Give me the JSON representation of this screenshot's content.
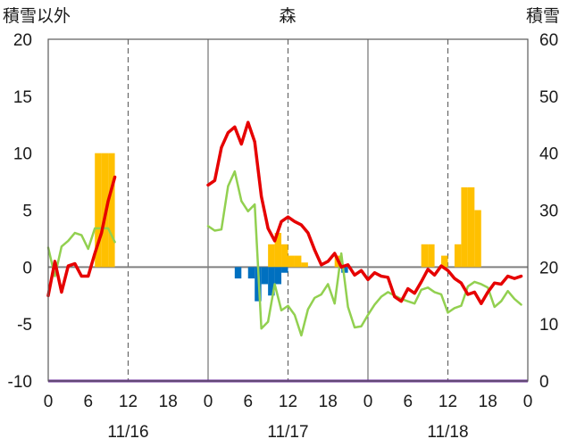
{
  "chart_data": {
    "type": "line",
    "title": "森",
    "left_axis_label": "積雪以外",
    "right_axis_label": "積雪",
    "left_ylim": [
      -10,
      20
    ],
    "left_yticks": [
      "20",
      "15",
      "10",
      "5",
      "0",
      "-5",
      "-10"
    ],
    "right_ylim": [
      0,
      60
    ],
    "right_yticks": [
      "60",
      "50",
      "40",
      "30",
      "20",
      "10",
      "0"
    ],
    "x_hour_ticks": [
      "0",
      "6",
      "12",
      "18",
      "0",
      "6",
      "12",
      "18",
      "0",
      "6",
      "12",
      "18",
      "0"
    ],
    "date_labels": [
      "11/16",
      "11/17",
      "11/18"
    ],
    "x_range_hours": [
      0,
      72
    ],
    "grid": "dashed vertical lines every 12 hours, solid at day boundaries",
    "colors": {
      "temperature": "#e60000",
      "wind": "#92d050",
      "precip_bar": "#ffc000",
      "negative_bar": "#0070c0",
      "snow_depth": "#7030a0",
      "zero_line": "#808080"
    },
    "series": [
      {
        "x": [
          0,
          1,
          2,
          3,
          4,
          5,
          6,
          7,
          8,
          9,
          10,
          24,
          25,
          26,
          27,
          28,
          29,
          30,
          31,
          32,
          33,
          34,
          35,
          36,
          37,
          38,
          39,
          40,
          41,
          42,
          43,
          44,
          45,
          46,
          47,
          48,
          49,
          50,
          51,
          52,
          53,
          54,
          55,
          56,
          57,
          58,
          59,
          60,
          61,
          62,
          63,
          64,
          65,
          66,
          67,
          68,
          69,
          70,
          71
        ],
        "values": [
          -2.5,
          0.5,
          -2.2,
          0.1,
          0.3,
          -0.8,
          -0.8,
          1.2,
          3.0,
          5.8,
          7.9,
          7.2,
          7.6,
          10.5,
          11.8,
          12.3,
          10.8,
          12.7,
          11.0,
          6.2,
          3.4,
          2.3,
          4.0,
          4.4,
          4.0,
          3.7,
          3.0,
          1.5,
          0.2,
          0.5,
          1.2,
          0.0,
          0.2,
          -0.7,
          -0.3,
          -1.1,
          -0.5,
          -0.8,
          -0.9,
          -2.6,
          -3.0,
          -1.9,
          -2.3,
          -1.3,
          -0.2,
          -0.7,
          0.1,
          -0.3,
          -1.0,
          -1.4,
          -2.4,
          -2.2,
          -3.2,
          -2.2,
          -1.4,
          -1.5,
          -0.8,
          -1.0,
          -0.8
        ]
      },
      {
        "x": [
          0,
          1,
          2,
          3,
          4,
          5,
          6,
          7,
          8,
          9,
          10,
          24,
          25,
          26,
          27,
          28,
          29,
          30,
          31,
          32,
          33,
          34,
          35,
          36,
          37,
          38,
          39,
          40,
          41,
          42,
          43,
          44,
          45,
          46,
          47,
          48,
          49,
          50,
          51,
          52,
          53,
          54,
          55,
          56,
          57,
          58,
          59,
          60,
          61,
          62,
          63,
          64,
          65,
          66,
          67,
          68,
          69,
          70,
          71
        ],
        "values": [
          1.7,
          -0.8,
          1.8,
          2.3,
          3.0,
          2.8,
          1.6,
          3.4,
          3.4,
          3.4,
          2.2,
          3.6,
          3.2,
          3.3,
          7.1,
          8.4,
          5.8,
          4.9,
          5.5,
          -5.4,
          -4.8,
          -1.5,
          -3.8,
          -3.4,
          -4.2,
          -6.0,
          -3.7,
          -2.7,
          -2.4,
          -1.5,
          -3.2,
          1.2,
          -3.5,
          -5.3,
          -5.2,
          -4.2,
          -3.3,
          -2.6,
          -2.2,
          -2.5,
          -2.8,
          -3.0,
          -3.2,
          -2.0,
          -1.8,
          -2.2,
          -2.4,
          -4.0,
          -3.6,
          -3.4,
          -1.7,
          -1.3,
          -1.5,
          -1.8,
          -3.5,
          -3.0,
          -2.1,
          -2.8,
          -3.3
        ]
      }
    ],
    "bars": {
      "x": [
        7,
        8,
        9,
        33,
        34,
        35,
        36,
        37,
        38,
        43,
        56,
        57,
        59,
        61,
        62,
        63,
        64
      ],
      "values": [
        10,
        10,
        10,
        2,
        3,
        2,
        1,
        1,
        0.4,
        1,
        2,
        2,
        1,
        2,
        7,
        7,
        5
      ]
    },
    "negative_bars": {
      "x": [
        28,
        30,
        31,
        32,
        33,
        34,
        35,
        44
      ],
      "values": [
        -1,
        -1,
        -3,
        -1.5,
        -2.5,
        -1.5,
        -0.5,
        -0.5
      ]
    },
    "snow_depth": {
      "x": [
        0,
        72
      ],
      "values": [
        0,
        0
      ]
    }
  }
}
